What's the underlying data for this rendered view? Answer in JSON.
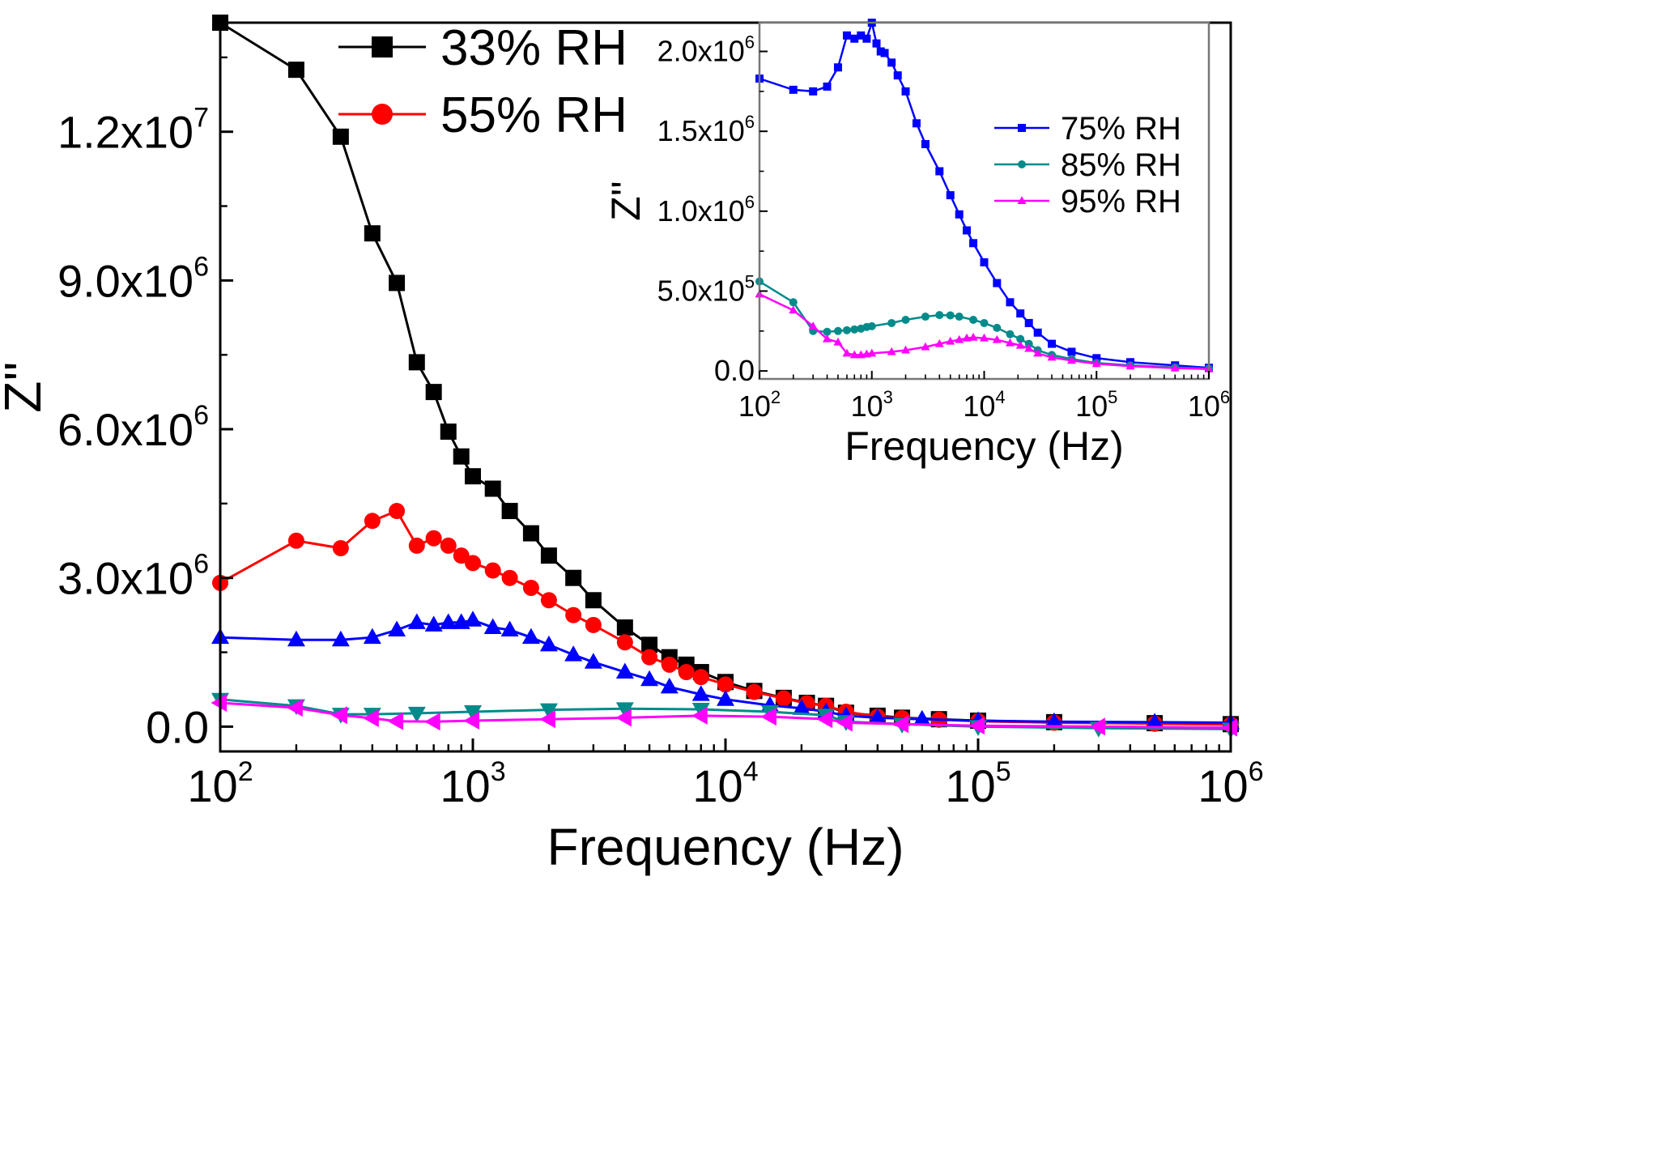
{
  "chart_data": [
    {
      "type": "line",
      "xlabel": "Frequency (Hz)",
      "ylabel": "Z''",
      "xscale": "log",
      "xlim": [
        100,
        1000000
      ],
      "ylim": [
        -500000,
        14200000
      ],
      "x_ticks": [
        {
          "value": 100,
          "base": "10",
          "exp": "2"
        },
        {
          "value": 1000,
          "base": "10",
          "exp": "3"
        },
        {
          "value": 10000,
          "base": "10",
          "exp": "4"
        },
        {
          "value": 100000,
          "base": "10",
          "exp": "5"
        },
        {
          "value": 1000000,
          "base": "10",
          "exp": "6"
        }
      ],
      "y_ticks": [
        {
          "value": 0,
          "mantissa": "0.0",
          "exp": ""
        },
        {
          "value": 3000000,
          "mantissa": "3.0x10",
          "exp": "6"
        },
        {
          "value": 6000000,
          "mantissa": "6.0x10",
          "exp": "6"
        },
        {
          "value": 9000000,
          "mantissa": "9.0x10",
          "exp": "6"
        },
        {
          "value": 12000000,
          "mantissa": "1.2x10",
          "exp": "7"
        }
      ],
      "legend": {
        "position": "top-center"
      },
      "series": [
        {
          "name": "33% RH",
          "color": "#000000",
          "marker": "square",
          "in_legend": true,
          "points": [
            [
              100,
              14200000
            ],
            [
              200,
              13250000
            ],
            [
              300,
              11900000
            ],
            [
              400,
              9950000
            ],
            [
              500,
              8950000
            ],
            [
              600,
              7350000
            ],
            [
              700,
              6750000
            ],
            [
              800,
              5950000
            ],
            [
              900,
              5450000
            ],
            [
              1000,
              5050000
            ],
            [
              1200,
              4800000
            ],
            [
              1400,
              4350000
            ],
            [
              1700,
              3900000
            ],
            [
              2000,
              3450000
            ],
            [
              2500,
              3000000
            ],
            [
              3000,
              2550000
            ],
            [
              4000,
              2000000
            ],
            [
              5000,
              1650000
            ],
            [
              6000,
              1400000
            ],
            [
              7000,
              1250000
            ],
            [
              8000,
              1100000
            ],
            [
              10000,
              900000
            ],
            [
              13000,
              720000
            ],
            [
              17000,
              580000
            ],
            [
              21000,
              480000
            ],
            [
              25000,
              420000
            ],
            [
              30000,
              280000
            ],
            [
              40000,
              220000
            ],
            [
              50000,
              180000
            ],
            [
              70000,
              150000
            ],
            [
              100000,
              120000
            ],
            [
              200000,
              90000
            ],
            [
              500000,
              70000
            ],
            [
              1000000,
              50000
            ]
          ]
        },
        {
          "name": "55% RH",
          "color": "#ff0000",
          "marker": "circle",
          "in_legend": true,
          "points": [
            [
              100,
              2900000
            ],
            [
              200,
              3750000
            ],
            [
              300,
              3600000
            ],
            [
              400,
              4150000
            ],
            [
              500,
              4350000
            ],
            [
              600,
              3650000
            ],
            [
              700,
              3800000
            ],
            [
              800,
              3650000
            ],
            [
              900,
              3450000
            ],
            [
              1000,
              3300000
            ],
            [
              1200,
              3150000
            ],
            [
              1400,
              3000000
            ],
            [
              1700,
              2800000
            ],
            [
              2000,
              2550000
            ],
            [
              2500,
              2250000
            ],
            [
              3000,
              2050000
            ],
            [
              4000,
              1700000
            ],
            [
              5000,
              1400000
            ],
            [
              6000,
              1250000
            ],
            [
              7000,
              1100000
            ],
            [
              8000,
              1000000
            ],
            [
              10000,
              850000
            ],
            [
              13000,
              700000
            ],
            [
              17000,
              570000
            ],
            [
              21000,
              470000
            ],
            [
              25000,
              420000
            ],
            [
              30000,
              300000
            ],
            [
              40000,
              200000
            ],
            [
              50000,
              170000
            ],
            [
              70000,
              140000
            ],
            [
              100000,
              110000
            ],
            [
              200000,
              80000
            ],
            [
              500000,
              60000
            ],
            [
              1000000,
              40000
            ]
          ]
        },
        {
          "name": "75% RH",
          "color": "#0000ff",
          "marker": "triangle-up",
          "in_legend": false,
          "points": [
            [
              100,
              1800000
            ],
            [
              200,
              1750000
            ],
            [
              300,
              1750000
            ],
            [
              400,
              1800000
            ],
            [
              500,
              1950000
            ],
            [
              600,
              2100000
            ],
            [
              700,
              2050000
            ],
            [
              800,
              2100000
            ],
            [
              900,
              2100000
            ],
            [
              1000,
              2150000
            ],
            [
              1200,
              2000000
            ],
            [
              1400,
              1950000
            ],
            [
              1700,
              1800000
            ],
            [
              2000,
              1650000
            ],
            [
              2500,
              1450000
            ],
            [
              3000,
              1300000
            ],
            [
              4000,
              1100000
            ],
            [
              5000,
              950000
            ],
            [
              6000,
              800000
            ],
            [
              8000,
              650000
            ],
            [
              10000,
              550000
            ],
            [
              15000,
              430000
            ],
            [
              20000,
              370000
            ],
            [
              25000,
              300000
            ],
            [
              30000,
              220000
            ],
            [
              40000,
              180000
            ],
            [
              60000,
              150000
            ],
            [
              100000,
              120000
            ],
            [
              200000,
              100000
            ],
            [
              500000,
              90000
            ],
            [
              1000000,
              80000
            ]
          ]
        },
        {
          "name": "85% RH",
          "color": "#008b8b",
          "marker": "triangle-down",
          "in_legend": false,
          "points": [
            [
              100,
              550000
            ],
            [
              200,
              420000
            ],
            [
              300,
              250000
            ],
            [
              400,
              250000
            ],
            [
              600,
              270000
            ],
            [
              1000,
              300000
            ],
            [
              2000,
              340000
            ],
            [
              4000,
              360000
            ],
            [
              8000,
              350000
            ],
            [
              15000,
              300000
            ],
            [
              25000,
              230000
            ],
            [
              30000,
              100000
            ],
            [
              50000,
              50000
            ],
            [
              100000,
              0
            ],
            [
              300000,
              -30000
            ],
            [
              1000000,
              -50000
            ]
          ]
        },
        {
          "name": "95% RH",
          "color": "#ff00ff",
          "marker": "triangle-left",
          "in_legend": false,
          "points": [
            [
              100,
              480000
            ],
            [
              200,
              380000
            ],
            [
              300,
              230000
            ],
            [
              400,
              170000
            ],
            [
              500,
              110000
            ],
            [
              700,
              100000
            ],
            [
              1000,
              120000
            ],
            [
              2000,
              150000
            ],
            [
              4000,
              180000
            ],
            [
              8000,
              220000
            ],
            [
              15000,
              200000
            ],
            [
              25000,
              150000
            ],
            [
              30000,
              80000
            ],
            [
              50000,
              50000
            ],
            [
              100000,
              20000
            ],
            [
              300000,
              0
            ],
            [
              1000000,
              -20000
            ]
          ]
        }
      ]
    },
    {
      "type": "line",
      "xlabel": "Frequency (Hz)",
      "ylabel": "Z''",
      "xscale": "log",
      "xlim": [
        100,
        1000000
      ],
      "ylim": [
        -50000,
        2180000
      ],
      "x_ticks": [
        {
          "value": 100,
          "base": "10",
          "exp": "2"
        },
        {
          "value": 1000,
          "base": "10",
          "exp": "3"
        },
        {
          "value": 10000,
          "base": "10",
          "exp": "4"
        },
        {
          "value": 100000,
          "base": "10",
          "exp": "5"
        },
        {
          "value": 1000000,
          "base": "10",
          "exp": "6"
        }
      ],
      "y_ticks": [
        {
          "value": 0,
          "mantissa": "0.0",
          "exp": ""
        },
        {
          "value": 500000,
          "mantissa": "5.0x10",
          "exp": "5"
        },
        {
          "value": 1000000,
          "mantissa": "1.0x10",
          "exp": "6"
        },
        {
          "value": 1500000,
          "mantissa": "1.5x10",
          "exp": "6"
        },
        {
          "value": 2000000,
          "mantissa": "2.0x10",
          "exp": "6"
        }
      ],
      "legend": {
        "position": "right"
      },
      "series": [
        {
          "name": "75% RH",
          "color": "#0000ff",
          "marker": "square",
          "points": [
            [
              100,
              1830000
            ],
            [
              200,
              1760000
            ],
            [
              300,
              1750000
            ],
            [
              400,
              1780000
            ],
            [
              500,
              1900000
            ],
            [
              600,
              2100000
            ],
            [
              700,
              2080000
            ],
            [
              800,
              2100000
            ],
            [
              900,
              2080000
            ],
            [
              1000,
              2180000
            ],
            [
              1100,
              2050000
            ],
            [
              1200,
              2000000
            ],
            [
              1300,
              1990000
            ],
            [
              1500,
              1930000
            ],
            [
              1700,
              1850000
            ],
            [
              2000,
              1750000
            ],
            [
              2500,
              1550000
            ],
            [
              3000,
              1420000
            ],
            [
              4000,
              1250000
            ],
            [
              5000,
              1100000
            ],
            [
              6000,
              980000
            ],
            [
              7000,
              880000
            ],
            [
              8000,
              800000
            ],
            [
              10000,
              680000
            ],
            [
              13000,
              550000
            ],
            [
              17000,
              430000
            ],
            [
              21000,
              360000
            ],
            [
              25000,
              300000
            ],
            [
              30000,
              240000
            ],
            [
              40000,
              170000
            ],
            [
              60000,
              120000
            ],
            [
              100000,
              80000
            ],
            [
              200000,
              55000
            ],
            [
              500000,
              35000
            ],
            [
              1000000,
              20000
            ]
          ]
        },
        {
          "name": "85% RH",
          "color": "#008b8b",
          "marker": "circle",
          "points": [
            [
              100,
              560000
            ],
            [
              200,
              430000
            ],
            [
              300,
              250000
            ],
            [
              400,
              245000
            ],
            [
              500,
              250000
            ],
            [
              600,
              255000
            ],
            [
              700,
              260000
            ],
            [
              800,
              265000
            ],
            [
              900,
              275000
            ],
            [
              1000,
              280000
            ],
            [
              1500,
              300000
            ],
            [
              2000,
              320000
            ],
            [
              3000,
              340000
            ],
            [
              4000,
              350000
            ],
            [
              5000,
              348000
            ],
            [
              6000,
              340000
            ],
            [
              8000,
              320000
            ],
            [
              10000,
              300000
            ],
            [
              13000,
              270000
            ],
            [
              17000,
              230000
            ],
            [
              21000,
              200000
            ],
            [
              25000,
              170000
            ],
            [
              30000,
              130000
            ],
            [
              40000,
              100000
            ],
            [
              60000,
              75000
            ],
            [
              100000,
              50000
            ],
            [
              200000,
              35000
            ],
            [
              500000,
              22000
            ],
            [
              1000000,
              15000
            ]
          ]
        },
        {
          "name": "95% RH",
          "color": "#ff00ff",
          "marker": "triangle-up",
          "points": [
            [
              100,
              480000
            ],
            [
              200,
              380000
            ],
            [
              300,
              280000
            ],
            [
              400,
              200000
            ],
            [
              500,
              180000
            ],
            [
              600,
              110000
            ],
            [
              700,
              100000
            ],
            [
              800,
              100000
            ],
            [
              900,
              105000
            ],
            [
              1000,
              110000
            ],
            [
              1500,
              120000
            ],
            [
              2000,
              130000
            ],
            [
              3000,
              150000
            ],
            [
              4000,
              170000
            ],
            [
              5000,
              185000
            ],
            [
              6000,
              195000
            ],
            [
              7000,
              205000
            ],
            [
              8000,
              210000
            ],
            [
              10000,
              205000
            ],
            [
              13000,
              195000
            ],
            [
              17000,
              175000
            ],
            [
              21000,
              160000
            ],
            [
              25000,
              140000
            ],
            [
              30000,
              110000
            ],
            [
              40000,
              85000
            ],
            [
              60000,
              65000
            ],
            [
              100000,
              45000
            ],
            [
              200000,
              30000
            ],
            [
              500000,
              18000
            ],
            [
              1000000,
              12000
            ]
          ]
        }
      ]
    }
  ]
}
